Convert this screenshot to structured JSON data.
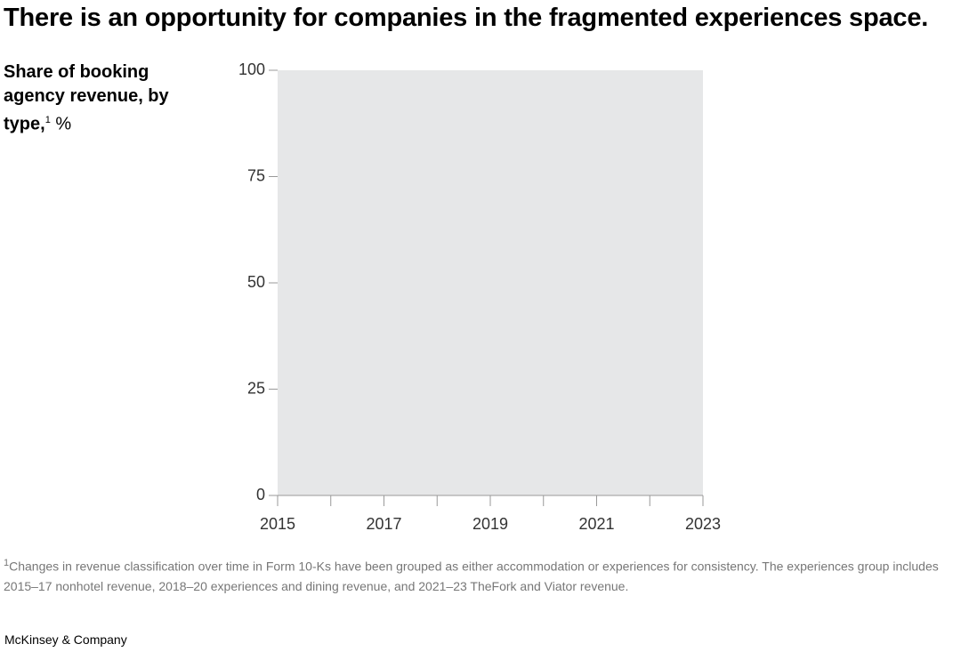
{
  "chart_data": {
    "type": "area",
    "title": "There is an opportunity for companies in the fragmented experiences space.",
    "subtitle": "Share of booking agency revenue, by type,",
    "subtitle_note": "1",
    "unit": "%",
    "plot_background": "#e6e7e8",
    "xlim": [
      2015,
      2023
    ],
    "xticks": [
      2015,
      2017,
      2019,
      2021,
      2023
    ],
    "xticks_minor": [
      2016,
      2018,
      2020,
      2022
    ],
    "ylim": [
      0,
      100
    ],
    "yticks": [
      0,
      25,
      50,
      75,
      100
    ],
    "footnote_marker": "1",
    "footnote": "Changes in revenue classification over time in Form 10-Ks have been grouped as either accommodation or experiences for consistency. The experiences group includes 2015–17 nonhotel revenue, 2018–20 experiences and dining revenue, and 2021–23 TheFork and Viator revenue.",
    "source": "McKinsey & Company"
  }
}
